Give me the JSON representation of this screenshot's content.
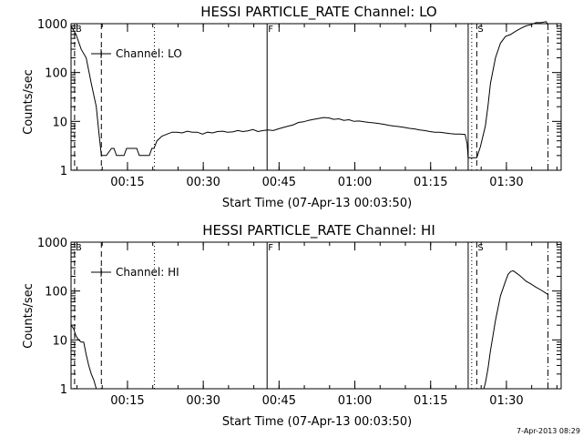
{
  "timestamp": "7-Apr-2013 08:29",
  "chart_data": [
    {
      "type": "line",
      "title": "HESSI PARTICLE_RATE Channel: LO",
      "xlabel": "Start Time (07-Apr-13 00:03:50)",
      "ylabel": "Counts/sec",
      "yscale": "log",
      "xlim": [
        0,
        97
      ],
      "ylim": [
        1,
        1000
      ],
      "x_ticks": [
        {
          "v": 11.17,
          "label": "00:15"
        },
        {
          "v": 26.17,
          "label": "00:30"
        },
        {
          "v": 41.17,
          "label": "00:45"
        },
        {
          "v": 56.17,
          "label": "01:00"
        },
        {
          "v": 71.17,
          "label": "01:15"
        },
        {
          "v": 86.17,
          "label": "01:30"
        }
      ],
      "y_ticks": [
        {
          "v": 1,
          "label": "1"
        },
        {
          "v": 10,
          "label": "10"
        },
        {
          "v": 100,
          "label": "100"
        },
        {
          "v": 1000,
          "label": "1000"
        }
      ],
      "legend": {
        "text": "Channel: LO",
        "position": "top-left"
      },
      "markers": [
        {
          "x": 0.7,
          "style": "dashed",
          "label": "B"
        },
        {
          "x": 6.0,
          "style": "dashed",
          "label": ""
        },
        {
          "x": 16.5,
          "style": "dotted",
          "label": ""
        },
        {
          "x": 38.8,
          "style": "solid",
          "label": "F"
        },
        {
          "x": 78.6,
          "style": "solid",
          "label": ""
        },
        {
          "x": 79.3,
          "style": "dotted",
          "label": ""
        },
        {
          "x": 80.3,
          "style": "dashed",
          "label": "S"
        },
        {
          "x": 94.4,
          "style": "dashdot",
          "label": ""
        }
      ],
      "series": [
        {
          "x": [
            0,
            1,
            2,
            3,
            4,
            5,
            5.5,
            6.0,
            7,
            8,
            8.5,
            9,
            9.5,
            10,
            10.5,
            11,
            13,
            13.5,
            14,
            14.5,
            15,
            15.5,
            16,
            16.4,
            17,
            18,
            19,
            20,
            21,
            22,
            23,
            24,
            25,
            26,
            27,
            28,
            29,
            30,
            31,
            32,
            33,
            34,
            35,
            36,
            37,
            38,
            39,
            40,
            41,
            42,
            43,
            44,
            45,
            46,
            47,
            48,
            49,
            50,
            51,
            52,
            53,
            54,
            55,
            56,
            57,
            58,
            59,
            60,
            61,
            62,
            63,
            64,
            65,
            66,
            67,
            68,
            69,
            70,
            71,
            72,
            73,
            74,
            75,
            76,
            77,
            78,
            78.4,
            78.6,
            80.3,
            81,
            82,
            82.5,
            83,
            84,
            85,
            86,
            87,
            88,
            89,
            90,
            91,
            92,
            93,
            94,
            94.4
          ],
          "values": [
            900,
            600,
            300,
            200,
            60,
            20,
            6,
            2,
            2,
            2.8,
            2.8,
            2,
            2,
            2,
            2,
            2.8,
            2.8,
            2,
            2,
            2,
            2,
            2,
            2.8,
            2.8,
            4,
            5,
            5.5,
            6,
            6,
            5.8,
            6.3,
            6,
            6,
            5.5,
            6,
            5.8,
            6.2,
            6.3,
            6,
            6.1,
            6.5,
            6.2,
            6.4,
            6.8,
            6.2,
            6.5,
            6.7,
            6.5,
            7,
            7.5,
            8,
            8.5,
            9.5,
            9.8,
            10.5,
            11,
            11.5,
            12,
            11.8,
            11,
            11.3,
            10.5,
            10.8,
            10,
            10.2,
            9.8,
            9.5,
            9.3,
            9,
            8.7,
            8.3,
            8,
            7.8,
            7.5,
            7.2,
            7,
            6.7,
            6.5,
            6.2,
            6,
            6,
            5.8,
            5.6,
            5.5,
            5.5,
            5.4,
            3.5,
            1.8,
            1.8,
            3,
            8,
            20,
            60,
            200,
            400,
            550,
            600,
            700,
            800,
            900,
            950,
            1050,
            1050,
            1100,
            950
          ]
        }
      ]
    },
    {
      "type": "line",
      "title": "HESSI PARTICLE_RATE Channel: HI",
      "xlabel": "Start Time (07-Apr-13 00:03:50)",
      "ylabel": "Counts/sec",
      "yscale": "log",
      "xlim": [
        0,
        97
      ],
      "ylim": [
        1,
        1000
      ],
      "x_ticks": [
        {
          "v": 11.17,
          "label": "00:15"
        },
        {
          "v": 26.17,
          "label": "00:30"
        },
        {
          "v": 41.17,
          "label": "00:45"
        },
        {
          "v": 56.17,
          "label": "01:00"
        },
        {
          "v": 71.17,
          "label": "01:15"
        },
        {
          "v": 86.17,
          "label": "01:30"
        }
      ],
      "y_ticks": [
        {
          "v": 1,
          "label": "1"
        },
        {
          "v": 10,
          "label": "10"
        },
        {
          "v": 100,
          "label": "100"
        },
        {
          "v": 1000,
          "label": "1000"
        }
      ],
      "legend": {
        "text": "Channel: HI",
        "position": "top-left"
      },
      "markers": [
        {
          "x": 0.7,
          "style": "dashed",
          "label": "B"
        },
        {
          "x": 6.0,
          "style": "dashed",
          "label": ""
        },
        {
          "x": 16.5,
          "style": "dotted",
          "label": ""
        },
        {
          "x": 38.8,
          "style": "solid",
          "label": "F"
        },
        {
          "x": 78.6,
          "style": "solid",
          "label": ""
        },
        {
          "x": 79.3,
          "style": "dotted",
          "label": ""
        },
        {
          "x": 80.3,
          "style": "dashed",
          "label": "S"
        },
        {
          "x": 94.4,
          "style": "dashdot",
          "label": ""
        }
      ],
      "series": [
        {
          "x": [
            0,
            0.5,
            1,
            1.5,
            2,
            2.5,
            3,
            3.5,
            4,
            4.5,
            5,
            81.7,
            82,
            82.5,
            83,
            83.5,
            84,
            85,
            86,
            86.5,
            87,
            87.5,
            88,
            89,
            90,
            91,
            92,
            93,
            94,
            94.4
          ],
          "values": [
            20,
            17,
            12,
            10,
            9,
            9,
            5,
            3,
            2,
            1.5,
            1,
            1,
            1.3,
            2.5,
            6,
            12,
            25,
            80,
            160,
            220,
            250,
            260,
            240,
            200,
            160,
            140,
            120,
            105,
            90,
            85
          ]
        }
      ]
    }
  ]
}
